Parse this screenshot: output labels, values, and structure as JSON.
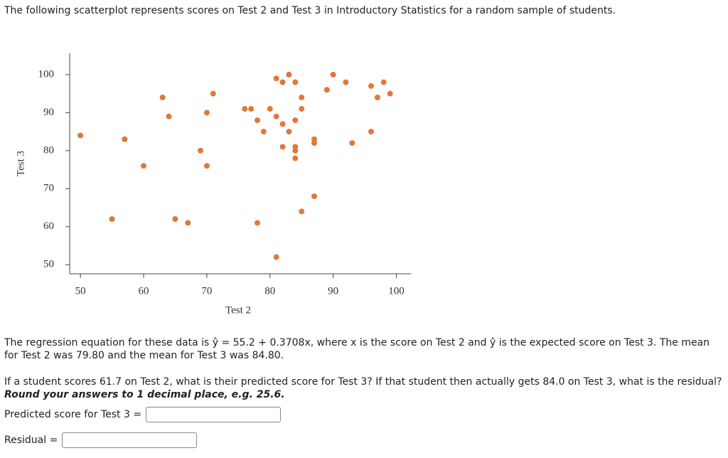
{
  "intro": "The following scatterplot represents scores on Test 2 and Test 3 in Introductory Statistics for a random sample of students.",
  "chart_data": {
    "type": "scatter",
    "xlabel": "Test 2",
    "ylabel": "Test 3",
    "color": "#e0783a",
    "x": [
      50,
      55,
      57,
      60,
      63,
      64,
      65,
      67,
      69,
      70,
      70,
      71,
      76,
      77,
      78,
      78,
      79,
      80,
      81,
      81,
      81,
      82,
      82,
      82,
      83,
      83,
      84,
      84,
      84,
      84,
      84,
      85,
      85,
      85,
      87,
      87,
      87,
      89,
      90,
      92,
      93,
      96,
      96,
      97,
      98,
      99
    ],
    "values": [
      84,
      62,
      83,
      76,
      94,
      89,
      62,
      61,
      80,
      90,
      76,
      95,
      91,
      91,
      88,
      61,
      85,
      91,
      99,
      89,
      52,
      98,
      87,
      81,
      100,
      85,
      98,
      88,
      81,
      80,
      78,
      94,
      91,
      64,
      83,
      82,
      68,
      96,
      100,
      98,
      82,
      97,
      85,
      94,
      98,
      95
    ],
    "xlim": [
      48.3,
      102.3
    ],
    "ylim": [
      47.6,
      105.6
    ],
    "xticks": [
      50,
      60,
      70,
      80,
      90,
      100
    ],
    "yticks": [
      50,
      60,
      70,
      80,
      90,
      100
    ]
  },
  "question": {
    "paragraph1": "The regression equation for these data is ŷ = 55.2 + 0.3708x, where x is the score on Test 2 and ŷ is the expected score on Test 3. The mean for Test 2 was 79.80 and the mean for Test 3 was 84.80.",
    "paragraph2": "If a student scores 61.7 on Test 2, what is their predicted score for Test 3? If that student then actually gets 84.0 on Test 3, what is the residual?",
    "emphasis": "Round your answers to 1 decimal place, e.g. 25.6."
  },
  "fields": [
    {
      "label": "Predicted score for Test 3 ="
    },
    {
      "label": "Residual ="
    }
  ]
}
